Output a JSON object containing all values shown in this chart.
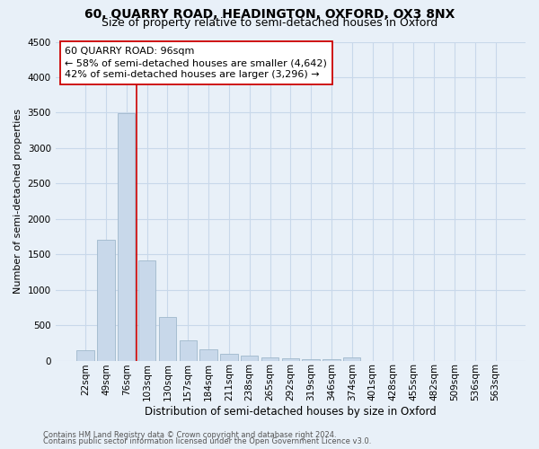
{
  "title1": "60, QUARRY ROAD, HEADINGTON, OXFORD, OX3 8NX",
  "title2": "Size of property relative to semi-detached houses in Oxford",
  "xlabel": "Distribution of semi-detached houses by size in Oxford",
  "ylabel": "Number of semi-detached properties",
  "footnote1": "Contains HM Land Registry data © Crown copyright and database right 2024.",
  "footnote2": "Contains public sector information licensed under the Open Government Licence v3.0.",
  "categories": [
    "22sqm",
    "49sqm",
    "76sqm",
    "103sqm",
    "130sqm",
    "157sqm",
    "184sqm",
    "211sqm",
    "238sqm",
    "265sqm",
    "292sqm",
    "319sqm",
    "346sqm",
    "374sqm",
    "401sqm",
    "428sqm",
    "455sqm",
    "482sqm",
    "509sqm",
    "536sqm",
    "563sqm"
  ],
  "values": [
    140,
    1700,
    3490,
    1410,
    620,
    290,
    160,
    100,
    65,
    45,
    35,
    25,
    20,
    40,
    0,
    0,
    0,
    0,
    0,
    0,
    0
  ],
  "bar_color": "#c8d8ea",
  "bar_edge_color": "#a0b8cc",
  "vline_x_index": 3,
  "vline_color": "#cc0000",
  "annotation_line1": "60 QUARRY ROAD: 96sqm",
  "annotation_line2": "← 58% of semi-detached houses are smaller (4,642)",
  "annotation_line3": "42% of semi-detached houses are larger (3,296) →",
  "annotation_box_color": "#ffffff",
  "annotation_box_edge_color": "#cc0000",
  "ylim": [
    0,
    4500
  ],
  "yticks": [
    0,
    500,
    1000,
    1500,
    2000,
    2500,
    3000,
    3500,
    4000,
    4500
  ],
  "grid_color": "#c8d8ea",
  "background_color": "#e8f0f8",
  "title1_fontsize": 10,
  "title2_fontsize": 9,
  "xlabel_fontsize": 8.5,
  "ylabel_fontsize": 8,
  "tick_fontsize": 7.5,
  "annotation_fontsize": 8,
  "footnote_fontsize": 6
}
